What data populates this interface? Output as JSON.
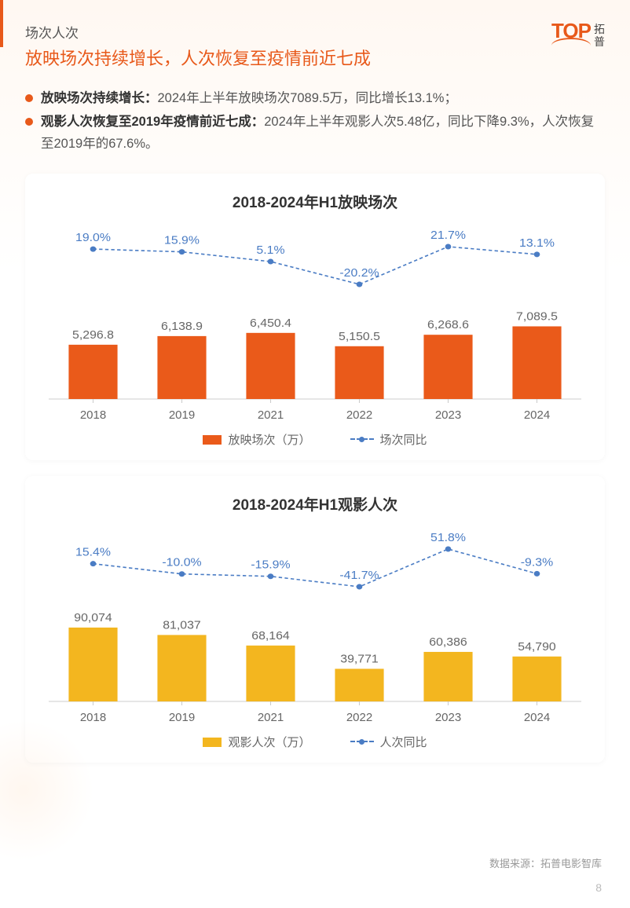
{
  "header": {
    "subtitle": "场次人次",
    "title": "放映场次持续增长，人次恢复至疫情前近七成",
    "logo_text": "TOP",
    "logo_cn1": "拓",
    "logo_cn2": "普"
  },
  "bullets": [
    {
      "bold": "放映场次持续增长：",
      "text": "2024年上半年放映场次7089.5万，同比增长13.1%；"
    },
    {
      "bold": "观影人次恢复至2019年疫情前近七成：",
      "text": "2024年上半年观影人次5.48亿，同比下降9.3%，人次恢复至2019年的67.6%。"
    }
  ],
  "chart1": {
    "type": "bar-line-combo",
    "title": "2018-2024年H1放映场次",
    "categories": [
      "2018",
      "2019",
      "2021",
      "2022",
      "2023",
      "2024"
    ],
    "bar_values": [
      5296.8,
      6138.9,
      6450.4,
      5150.5,
      6268.6,
      7089.5
    ],
    "bar_labels": [
      "5,296.8",
      "6,138.9",
      "6,450.4",
      "5,150.5",
      "6,268.6",
      "7,089.5"
    ],
    "line_values": [
      19.0,
      15.9,
      5.1,
      -20.2,
      21.7,
      13.1
    ],
    "line_labels": [
      "19.0%",
      "15.9%",
      "5.1%",
      "-20.2%",
      "21.7%",
      "13.1%"
    ],
    "bar_color": "#ea5a1a",
    "line_color": "#4a7cc4",
    "bar_max": 8000,
    "legend_bar": "放映场次（万）",
    "legend_line": "场次同比",
    "text_color": "#666666",
    "axis_color": "#cccccc"
  },
  "chart2": {
    "type": "bar-line-combo",
    "title": "2018-2024年H1观影人次",
    "categories": [
      "2018",
      "2019",
      "2021",
      "2022",
      "2023",
      "2024"
    ],
    "bar_values": [
      90074,
      81037,
      68164,
      39771,
      60386,
      54790
    ],
    "bar_labels": [
      "90,074",
      "81,037",
      "68,164",
      "39,771",
      "60,386",
      "54,790"
    ],
    "line_values": [
      15.4,
      -10.0,
      -15.9,
      -41.7,
      51.8,
      -9.3
    ],
    "line_labels": [
      "15.4%",
      "-10.0%",
      "-15.9%",
      "-41.7%",
      "51.8%",
      "-9.3%"
    ],
    "bar_color": "#f3b61f",
    "line_color": "#4a7cc4",
    "bar_max": 100000,
    "legend_bar": "观影人次（万）",
    "legend_line": "人次同比",
    "text_color": "#666666",
    "axis_color": "#cccccc"
  },
  "footer": {
    "source": "数据来源：拓普电影智库",
    "page": "8"
  }
}
